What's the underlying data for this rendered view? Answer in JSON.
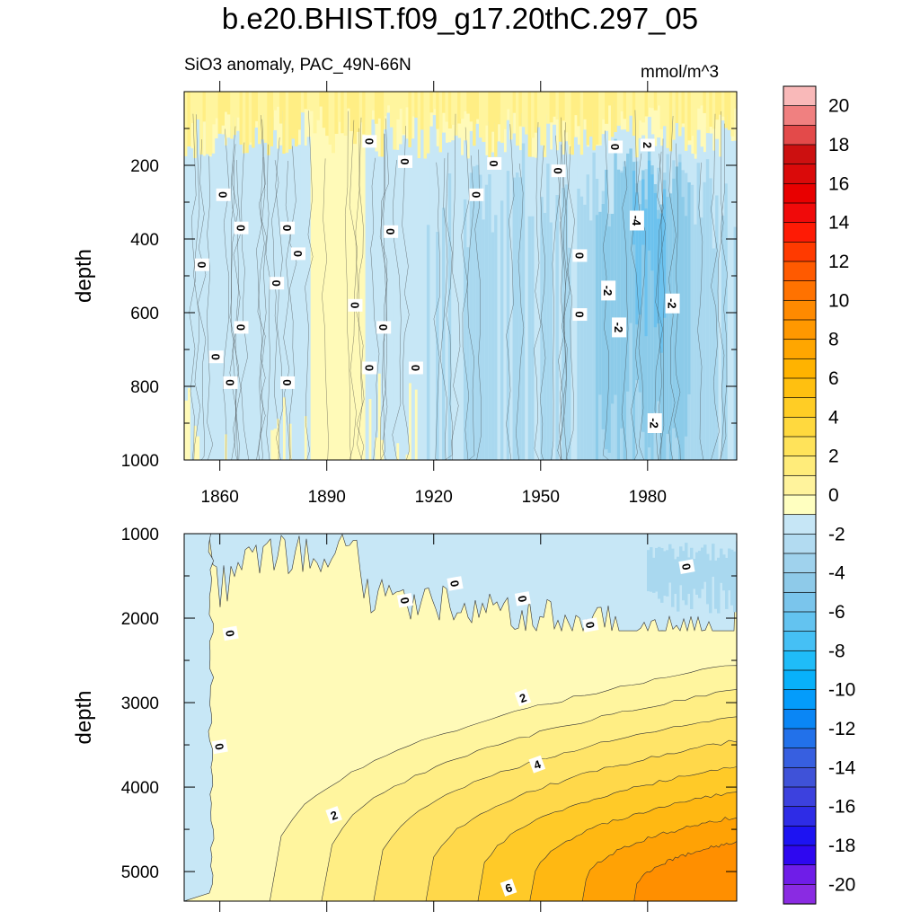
{
  "header": {
    "title": "b.e20.BHIST.f09_g17.20thC.297_05",
    "subtitle_left": "SiO3 anomaly, PAC_49N-66N",
    "subtitle_right": "mmol/m^3"
  },
  "chart_data": [
    {
      "type": "contour",
      "panel": "upper",
      "title": "SiO3 anomaly, PAC_49N-66N",
      "units": "mmol/m^3",
      "ylabel": "depth",
      "xlabel": "",
      "xlim": [
        1850,
        2005
      ],
      "ylim": [
        1000,
        0
      ],
      "x_ticks": [
        1860,
        1890,
        1920,
        1950,
        1980
      ],
      "x_tick_labels": [
        "1860",
        "1890",
        "1920",
        "1950",
        "1980"
      ],
      "y_ticks": [
        200,
        400,
        600,
        800,
        1000
      ],
      "y_tick_labels": [
        "200",
        "400",
        "600",
        "800",
        "1000"
      ],
      "contour_labels": [
        {
          "text": "0",
          "x": 1902,
          "y": 135
        },
        {
          "text": "0",
          "x": 1912,
          "y": 190
        },
        {
          "text": "0",
          "x": 1861,
          "y": 280
        },
        {
          "text": "0",
          "x": 1866,
          "y": 370
        },
        {
          "text": "0",
          "x": 1879,
          "y": 370
        },
        {
          "text": "0",
          "x": 1932,
          "y": 280
        },
        {
          "text": "0",
          "x": 1937,
          "y": 195
        },
        {
          "text": "0",
          "x": 1955,
          "y": 215
        },
        {
          "text": "0",
          "x": 1971,
          "y": 150
        },
        {
          "text": "2",
          "x": 1980,
          "y": 145
        },
        {
          "text": "-4",
          "x": 1977,
          "y": 350
        },
        {
          "text": "0",
          "x": 1908,
          "y": 380
        },
        {
          "text": "0",
          "x": 1882,
          "y": 440
        },
        {
          "text": "0",
          "x": 1855,
          "y": 470
        },
        {
          "text": "0",
          "x": 1876,
          "y": 520
        },
        {
          "text": "0",
          "x": 1961,
          "y": 445
        },
        {
          "text": "-2",
          "x": 1969,
          "y": 540
        },
        {
          "text": "0",
          "x": 1898,
          "y": 580
        },
        {
          "text": "0",
          "x": 1961,
          "y": 605
        },
        {
          "text": "-2",
          "x": 1972,
          "y": 640
        },
        {
          "text": "-2",
          "x": 1987,
          "y": 575
        },
        {
          "text": "0",
          "x": 1866,
          "y": 640
        },
        {
          "text": "0",
          "x": 1906,
          "y": 640
        },
        {
          "text": "0",
          "x": 1859,
          "y": 720
        },
        {
          "text": "0",
          "x": 1902,
          "y": 750
        },
        {
          "text": "0",
          "x": 1915,
          "y": 750
        },
        {
          "text": "0",
          "x": 1863,
          "y": 790
        },
        {
          "text": "0",
          "x": 1879,
          "y": 790
        },
        {
          "text": "-2",
          "x": 1982,
          "y": 900
        }
      ]
    },
    {
      "type": "contour",
      "panel": "lower",
      "ylabel": "depth",
      "xlabel": "",
      "xlim": [
        1850,
        2005
      ],
      "ylim": [
        5350,
        1000
      ],
      "x_ticks": [
        1860,
        1890,
        1920,
        1950,
        1980
      ],
      "y_ticks": [
        1000,
        2000,
        3000,
        4000,
        5000
      ],
      "y_tick_labels": [
        "1000",
        "2000",
        "3000",
        "4000",
        "5000"
      ],
      "contour_labels": [
        {
          "text": "0",
          "x": 1863,
          "y": 2180
        },
        {
          "text": "0",
          "x": 1912,
          "y": 1790
        },
        {
          "text": "0",
          "x": 1926,
          "y": 1590
        },
        {
          "text": "0",
          "x": 1945,
          "y": 1770
        },
        {
          "text": "0",
          "x": 1964,
          "y": 2080
        },
        {
          "text": "0",
          "x": 1991,
          "y": 1390
        },
        {
          "text": "0",
          "x": 1860,
          "y": 3520
        },
        {
          "text": "2",
          "x": 1945,
          "y": 2940
        },
        {
          "text": "4",
          "x": 1949,
          "y": 3730
        },
        {
          "text": "2",
          "x": 1892,
          "y": 4330
        },
        {
          "text": "6",
          "x": 1941,
          "y": 5190
        }
      ]
    }
  ],
  "colorbar": {
    "labels": [
      "20",
      "18",
      "16",
      "14",
      "12",
      "10",
      "8",
      "6",
      "4",
      "2",
      "0",
      "-2",
      "-4",
      "-6",
      "-8",
      "-10",
      "-12",
      "-14",
      "-16",
      "-18",
      "-20"
    ],
    "colors": [
      "#f9b9b9",
      "#f08080",
      "#e34a4a",
      "#cc1010",
      "#da0a0a",
      "#e80000",
      "#f00a0a",
      "#fe1b05",
      "#ff3a00",
      "#ff5a00",
      "#ff7200",
      "#ff8a00",
      "#ff9800",
      "#ffa600",
      "#ffb300",
      "#ffc010",
      "#ffcd25",
      "#ffd93e",
      "#ffe35a",
      "#ffec7a",
      "#fff39c",
      "#ffffc0",
      "#c6e6f6",
      "#b2dbf1",
      "#9fd2ed",
      "#8ecae9",
      "#7ac5ec",
      "#63c3f0",
      "#45c0f5",
      "#1fbcf8",
      "#08b1fa",
      "#049cfb",
      "#0a86f5",
      "#2271ea",
      "#375fe0",
      "#3f52d8",
      "#3c41de",
      "#2e2ce6",
      "#1d13f2",
      "#2e07f0",
      "#6f1de8",
      "#8a2be2"
    ]
  },
  "fill_colors": {
    "pos1": "#fffab8",
    "pos2": "#fff59e",
    "pos3": "#ffee84",
    "pos4": "#ffe468",
    "pos5": "#ffd84a",
    "pos6": "#ffca28",
    "pos7": "#ffb812",
    "pos8": "#ffa205",
    "pos9": "#ff8f00",
    "neg1": "#c7e7f6",
    "neg2": "#a9d8ef",
    "neg3": "#8ccbe9",
    "neg4": "#6cc2ee",
    "line": "#333333"
  }
}
